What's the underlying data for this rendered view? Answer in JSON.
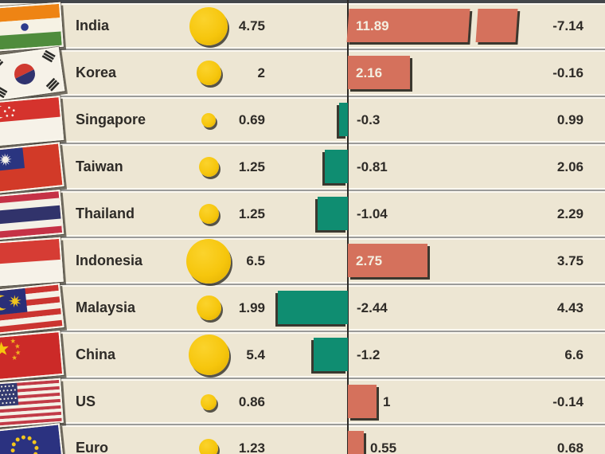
{
  "chart_data": {
    "type": "bar",
    "orientation": "horizontal-diverging",
    "legend": "none",
    "grid": "row-separators",
    "columns_visible_headers": [],
    "rows": [
      {
        "flag": "india-flag-icon",
        "country": "India",
        "circle_value": 4.75,
        "circle_label": "4.75",
        "bar_value": 11.89,
        "bar_label": "11.89",
        "bar_direction": "positive",
        "bar_overflow_break": true,
        "right_value": -7.14,
        "right_label": "-7.14"
      },
      {
        "flag": "korea-flag-icon",
        "country": "Korea",
        "circle_value": 2,
        "circle_label": "2",
        "bar_value": 2.16,
        "bar_label": "2.16",
        "bar_direction": "positive",
        "bar_overflow_break": false,
        "right_value": -0.16,
        "right_label": "-0.16"
      },
      {
        "flag": "singapore-flag-icon",
        "country": "Singapore",
        "circle_value": 0.69,
        "circle_label": "0.69",
        "bar_value": -0.3,
        "bar_label": "-0.3",
        "bar_direction": "negative",
        "bar_overflow_break": false,
        "right_value": 0.99,
        "right_label": "0.99"
      },
      {
        "flag": "taiwan-flag-icon",
        "country": "Taiwan",
        "circle_value": 1.25,
        "circle_label": "1.25",
        "bar_value": -0.81,
        "bar_label": "-0.81",
        "bar_direction": "negative",
        "bar_overflow_break": false,
        "right_value": 2.06,
        "right_label": "2.06"
      },
      {
        "flag": "thailand-flag-icon",
        "country": "Thailand",
        "circle_value": 1.25,
        "circle_label": "1.25",
        "bar_value": -1.04,
        "bar_label": "-1.04",
        "bar_direction": "negative",
        "bar_overflow_break": false,
        "right_value": 2.29,
        "right_label": "2.29"
      },
      {
        "flag": "indonesia-flag-icon",
        "country": "Indonesia",
        "circle_value": 6.5,
        "circle_label": "6.5",
        "bar_value": 2.75,
        "bar_label": "2.75",
        "bar_direction": "positive",
        "bar_overflow_break": false,
        "right_value": 3.75,
        "right_label": "3.75"
      },
      {
        "flag": "malaysia-flag-icon",
        "country": "Malaysia",
        "circle_value": 1.99,
        "circle_label": "1.99",
        "bar_value": -2.44,
        "bar_label": "-2.44",
        "bar_direction": "negative",
        "bar_overflow_break": false,
        "right_value": 4.43,
        "right_label": "4.43"
      },
      {
        "flag": "china-flag-icon",
        "country": "China",
        "circle_value": 5.4,
        "circle_label": "5.4",
        "bar_value": -1.2,
        "bar_label": "-1.2",
        "bar_direction": "negative",
        "bar_overflow_break": false,
        "right_value": 6.6,
        "right_label": "6.6"
      },
      {
        "flag": "us-flag-icon",
        "country": "US",
        "circle_value": 0.86,
        "circle_label": "0.86",
        "bar_value": 1,
        "bar_label": "1",
        "bar_direction": "positive",
        "bar_overflow_break": false,
        "right_value": -0.14,
        "right_label": "-0.14"
      },
      {
        "flag": "euro-flag-icon",
        "country": "Euro",
        "circle_value": 1.23,
        "circle_label": "1.23",
        "bar_value": 0.55,
        "bar_label": "0.55",
        "bar_direction": "positive",
        "bar_overflow_break": false,
        "right_value": 0.68,
        "right_label": "0.68"
      }
    ],
    "colors": {
      "background": "#EDE6D3",
      "positive_bar": "#D5715C",
      "negative_bar": "#0F8D71",
      "circle": "#F6C60D",
      "text": "#2E2B27",
      "bar_label_inside": "#F4EFE1",
      "axis_line": "#2B2926",
      "separator_line": "#9B9B99",
      "top_strip": "#43464A"
    }
  }
}
